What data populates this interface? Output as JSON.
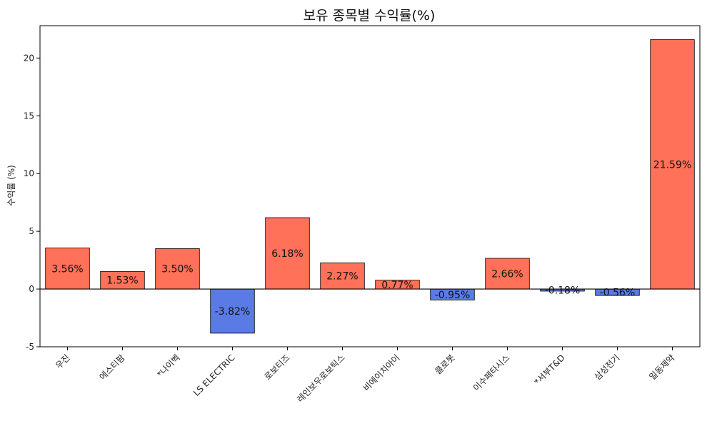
{
  "chart_data": {
    "type": "bar",
    "title": "보유 종목별 수익률(%)",
    "xlabel": "",
    "ylabel": "수익률 (%)",
    "ylim": [
      -5,
      22.8
    ],
    "yticks": [
      -5,
      0,
      5,
      10,
      15,
      20
    ],
    "categories": [
      "우진",
      "에스티팜",
      "*나이벡",
      "LS ELECTRIC",
      "로보티즈",
      "레인보우로보틱스",
      "비에이치아이",
      "클로봇",
      "이수페타시스",
      "*서부T&D",
      "삼성전기",
      "일동제약"
    ],
    "values": [
      3.56,
      1.53,
      3.5,
      -3.82,
      6.18,
      2.27,
      0.77,
      -0.95,
      2.66,
      -0.18,
      -0.56,
      21.59
    ],
    "data_labels": [
      "3.56%",
      "1.53%",
      "3.50%",
      "-3.82%",
      "6.18%",
      "2.27%",
      "0.77%",
      "-0.95%",
      "2.66%",
      "-0.18%",
      "-0.56%",
      "21.59%"
    ],
    "grid": false,
    "zero_line": true,
    "colors": {
      "positive": "#ff7158",
      "negative": "#5a7be6",
      "edge": "#000000"
    }
  }
}
